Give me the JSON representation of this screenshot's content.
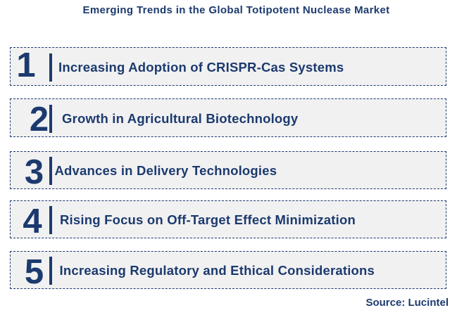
{
  "title": "Emerging Trends in the Global Totipotent Nuclease Market",
  "source": "Source: Lucintel",
  "colors": {
    "navy": "#1C3A6E",
    "box_bg": "#F1F1F2"
  },
  "chart_data": {
    "type": "table",
    "title": "Emerging Trends in the Global Totipotent Nuclease Market",
    "items": [
      {
        "rank": "1",
        "label": "Increasing Adoption of CRISPR-Cas Systems"
      },
      {
        "rank": "2",
        "label": "Growth in Agricultural Biotechnology"
      },
      {
        "rank": "3",
        "label": "Advances in Delivery Technologies"
      },
      {
        "rank": "4",
        "label": "Rising Focus on Off-Target Effect Minimization"
      },
      {
        "rank": "5",
        "label": "Increasing Regulatory and Ethical Considerations"
      }
    ],
    "source": "Source: Lucintel"
  }
}
